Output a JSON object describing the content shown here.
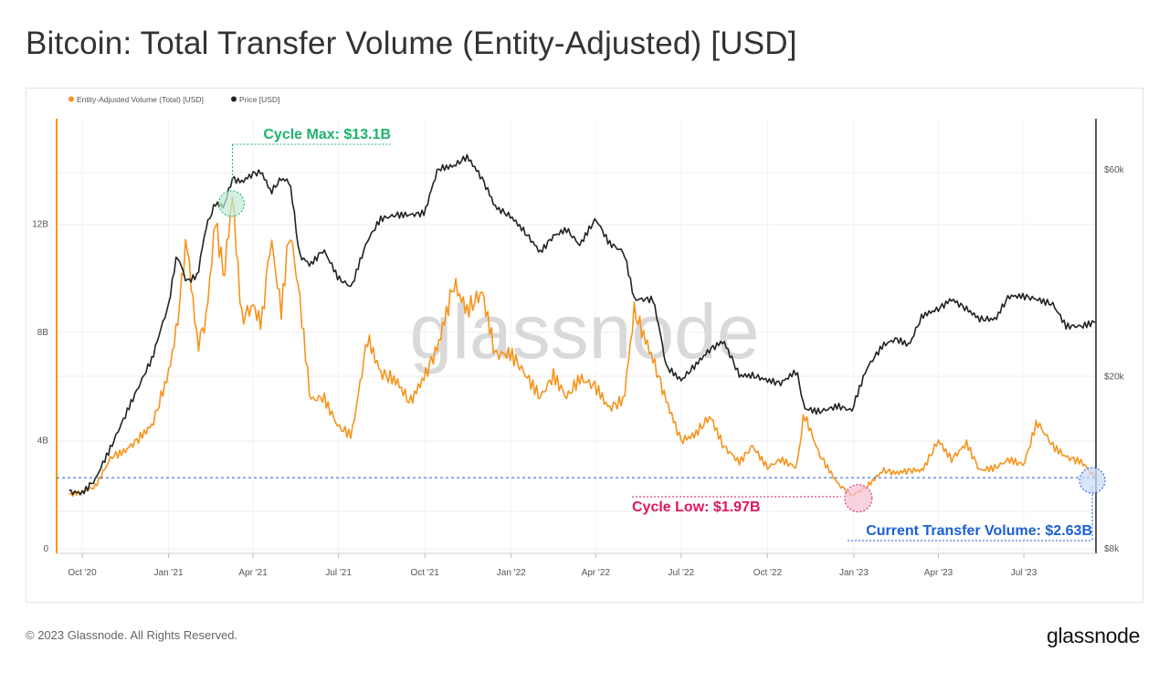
{
  "title": "Bitcoin: Total Transfer Volume (Entity-Adjusted) [USD]",
  "watermark": "glassnode",
  "footer": {
    "copyright": "© 2023 Glassnode. All Rights Reserved.",
    "logo": "glassnode"
  },
  "colors": {
    "volume": "#f7931a",
    "price": "#222222",
    "cycle_max": "#1cb36b",
    "cycle_low": "#e0165f",
    "current": "#1a5fd6"
  },
  "annotations": {
    "cycle_max": "Cycle Max: $13.1B",
    "cycle_low": "Cycle Low: $1.97B",
    "current": "Current Transfer Volume: $2.63B"
  },
  "chart_data": {
    "type": "line",
    "legend": [
      "Entity-Adjusted Volume (Total) [USD]",
      "Price [USD]"
    ],
    "legend_position": "top-left",
    "x_tick_labels": [
      "Oct '20",
      "Jan '21",
      "Apr '21",
      "Jul '21",
      "Oct '21",
      "Jan '22",
      "Apr '22",
      "Jul '22",
      "Oct '22",
      "Jan '23",
      "Apr '23",
      "Jul '23"
    ],
    "y_left_tick_labels": [
      "0",
      "4B",
      "8B",
      "12B"
    ],
    "y_right_tick_labels": [
      "$8k",
      "$20k",
      "$60k"
    ],
    "y_left_range": [
      0,
      16000000000
    ],
    "y_right_range": [
      8000,
      80000
    ],
    "y_right_scale": "log",
    "grid": true,
    "series": [
      {
        "name": "Entity-Adjusted Volume (Total) [USD]",
        "axis": "left",
        "x": [
          "2020-09-17",
          "2020-10-01",
          "2020-10-15",
          "2020-11-01",
          "2020-11-15",
          "2020-12-01",
          "2020-12-15",
          "2021-01-01",
          "2021-01-10",
          "2021-01-20",
          "2021-02-01",
          "2021-02-10",
          "2021-02-20",
          "2021-03-01",
          "2021-03-10",
          "2021-03-20",
          "2021-04-01",
          "2021-04-10",
          "2021-04-20",
          "2021-05-01",
          "2021-05-10",
          "2021-05-20",
          "2021-06-01",
          "2021-06-15",
          "2021-07-01",
          "2021-07-15",
          "2021-08-01",
          "2021-08-15",
          "2021-09-01",
          "2021-09-15",
          "2021-10-01",
          "2021-10-15",
          "2021-11-01",
          "2021-11-15",
          "2021-12-01",
          "2021-12-15",
          "2022-01-01",
          "2022-01-15",
          "2022-02-01",
          "2022-02-15",
          "2022-03-01",
          "2022-03-15",
          "2022-04-01",
          "2022-04-15",
          "2022-05-01",
          "2022-05-12",
          "2022-06-01",
          "2022-06-15",
          "2022-07-01",
          "2022-07-15",
          "2022-08-01",
          "2022-08-15",
          "2022-09-01",
          "2022-09-15",
          "2022-10-01",
          "2022-10-15",
          "2022-11-01",
          "2022-11-09",
          "2022-11-25",
          "2022-12-15",
          "2022-12-30",
          "2023-01-15",
          "2023-02-01",
          "2023-02-15",
          "2023-03-01",
          "2023-03-15",
          "2023-04-01",
          "2023-04-15",
          "2023-05-01",
          "2023-05-15",
          "2023-06-01",
          "2023-06-15",
          "2023-07-01",
          "2023-07-15",
          "2023-08-01",
          "2023-08-15",
          "2023-09-01",
          "2023-09-15"
        ],
        "y": [
          2000000000.0,
          2100000000.0,
          2300000000.0,
          3400000000.0,
          3600000000.0,
          4100000000.0,
          4600000000.0,
          6500000000.0,
          8200000000.0,
          11500000000.0,
          7500000000.0,
          8500000000.0,
          12200000000.0,
          10000000000.0,
          13100000000.0,
          8500000000.0,
          9000000000.0,
          8300000000.0,
          11500000000.0,
          8800000000.0,
          11800000000.0,
          9500000000.0,
          5500000000.0,
          5600000000.0,
          4500000000.0,
          4200000000.0,
          7800000000.0,
          6500000000.0,
          6200000000.0,
          5400000000.0,
          6400000000.0,
          7500000000.0,
          9800000000.0,
          8800000000.0,
          9500000000.0,
          7200000000.0,
          7200000000.0,
          6500000000.0,
          5600000000.0,
          6400000000.0,
          5600000000.0,
          6300000000.0,
          6000000000.0,
          5200000000.0,
          5500000000.0,
          8800000000.0,
          7000000000.0,
          5500000000.0,
          4000000000.0,
          4200000000.0,
          4900000000.0,
          3800000000.0,
          3200000000.0,
          3800000000.0,
          3000000000.0,
          3300000000.0,
          3000000000.0,
          5000000000.0,
          3500000000.0,
          2400000000.0,
          1970000000.0,
          2300000000.0,
          2900000000.0,
          2800000000.0,
          2900000000.0,
          2900000000.0,
          4000000000.0,
          3300000000.0,
          3900000000.0,
          2900000000.0,
          3000000000.0,
          3300000000.0,
          3100000000.0,
          4700000000.0,
          3800000000.0,
          3400000000.0,
          3200000000.0,
          2630000000.0
        ]
      },
      {
        "name": "Price [USD]",
        "axis": "right",
        "x": [
          "2020-09-17",
          "2020-10-01",
          "2020-10-15",
          "2020-11-01",
          "2020-11-15",
          "2020-12-01",
          "2020-12-15",
          "2021-01-01",
          "2021-01-10",
          "2021-01-20",
          "2021-02-01",
          "2021-02-10",
          "2021-02-20",
          "2021-03-01",
          "2021-03-10",
          "2021-03-20",
          "2021-04-01",
          "2021-04-10",
          "2021-04-20",
          "2021-05-01",
          "2021-05-10",
          "2021-05-20",
          "2021-06-01",
          "2021-06-15",
          "2021-07-01",
          "2021-07-15",
          "2021-08-01",
          "2021-08-15",
          "2021-09-01",
          "2021-09-15",
          "2021-10-01",
          "2021-10-15",
          "2021-11-01",
          "2021-11-15",
          "2021-12-01",
          "2021-12-15",
          "2022-01-01",
          "2022-01-15",
          "2022-02-01",
          "2022-02-15",
          "2022-03-01",
          "2022-03-15",
          "2022-04-01",
          "2022-04-15",
          "2022-05-01",
          "2022-05-12",
          "2022-06-01",
          "2022-06-15",
          "2022-07-01",
          "2022-07-15",
          "2022-08-01",
          "2022-08-15",
          "2022-09-01",
          "2022-09-15",
          "2022-10-01",
          "2022-10-15",
          "2022-11-01",
          "2022-11-09",
          "2022-11-25",
          "2022-12-15",
          "2022-12-30",
          "2023-01-15",
          "2023-02-01",
          "2023-02-15",
          "2023-03-01",
          "2023-03-15",
          "2023-04-01",
          "2023-04-15",
          "2023-05-01",
          "2023-05-15",
          "2023-06-01",
          "2023-06-15",
          "2023-07-01",
          "2023-07-15",
          "2023-08-01",
          "2023-08-15",
          "2023-09-01",
          "2023-09-15"
        ],
        "y": [
          10800,
          10700,
          11500,
          13700,
          16000,
          19000,
          22000,
          29000,
          38000,
          33000,
          34000,
          44000,
          50000,
          49000,
          57000,
          56000,
          58500,
          59000,
          53000,
          57000,
          56000,
          38000,
          36000,
          39000,
          33500,
          32000,
          41000,
          46000,
          47000,
          47000,
          47500,
          60000,
          61000,
          64000,
          57000,
          49000,
          46500,
          43000,
          38500,
          42000,
          43500,
          40000,
          46000,
          40500,
          38500,
          30000,
          30000,
          21000,
          19500,
          21000,
          23000,
          24000,
          20000,
          20000,
          19500,
          19200,
          20500,
          16800,
          16500,
          17000,
          16600,
          20800,
          23500,
          24300,
          23500,
          27500,
          28500,
          30000,
          28500,
          27000,
          27000,
          30500,
          30500,
          30000,
          29200,
          26000,
          26000,
          26600
        ]
      }
    ]
  }
}
